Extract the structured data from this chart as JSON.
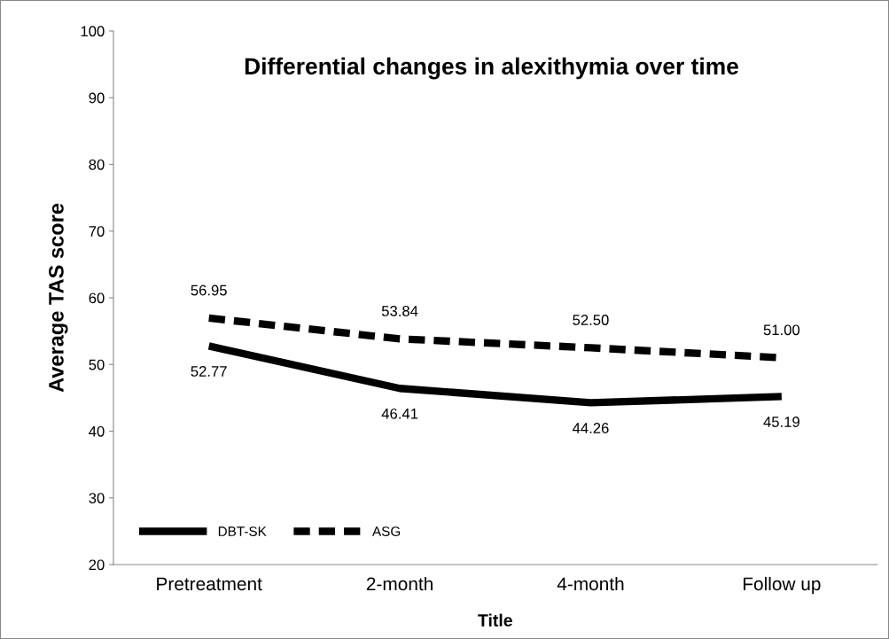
{
  "chart_data": {
    "type": "line",
    "title": "Differential changes in alexithymia over time",
    "xlabel": "Title",
    "ylabel": "Average TAS score",
    "categories": [
      "Pretreatment",
      "2-month",
      "4-month",
      "Follow up"
    ],
    "series": [
      {
        "name": "DBT-SK",
        "color": "#000000",
        "line_style": "solid",
        "values": [
          52.77,
          46.41,
          44.26,
          45.19
        ]
      },
      {
        "name": "ASG",
        "color": "#000000",
        "line_style": "dashed",
        "values": [
          56.95,
          53.84,
          52.5,
          51.0
        ]
      }
    ],
    "value_labels": [
      [
        "52.77",
        "46.41",
        "44.26",
        "45.19"
      ],
      [
        "56.95",
        "53.84",
        "52.50",
        "51.00"
      ]
    ],
    "ylim": [
      20,
      100
    ],
    "yticks": [
      20,
      30,
      40,
      50,
      60,
      70,
      80,
      90,
      100
    ],
    "grid": false,
    "legend": "bottom left",
    "marker": "none"
  }
}
